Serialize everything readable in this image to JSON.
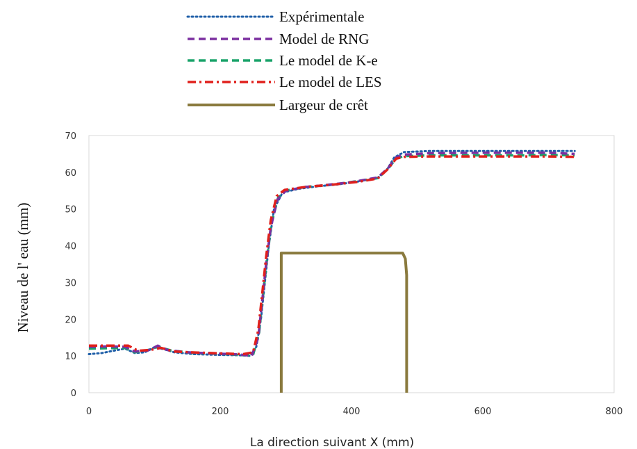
{
  "chart_data": {
    "type": "line",
    "title": "",
    "xlabel": "La direction suivant X (mm)",
    "ylabel": "Niveau de l' eau (mm)",
    "xlim": [
      0,
      800
    ],
    "ylim": [
      0,
      70
    ],
    "xticks": [
      0,
      200,
      400,
      600,
      800
    ],
    "yticks": [
      0,
      10,
      20,
      30,
      40,
      50,
      60,
      70
    ],
    "grid": false,
    "legend_position": "top",
    "series": [
      {
        "name": "Expérimentale",
        "color": "#1f5fa8",
        "style": "dotted",
        "points": [
          [
            0,
            10.5
          ],
          [
            20,
            10.8
          ],
          [
            40,
            11.5
          ],
          [
            55,
            12.0
          ],
          [
            70,
            10.8
          ],
          [
            85,
            11.0
          ],
          [
            100,
            12.4
          ],
          [
            115,
            11.8
          ],
          [
            130,
            11.0
          ],
          [
            160,
            10.5
          ],
          [
            200,
            10.3
          ],
          [
            230,
            10.2
          ],
          [
            245,
            10.0
          ],
          [
            255,
            12.5
          ],
          [
            262,
            20
          ],
          [
            268,
            30
          ],
          [
            274,
            40
          ],
          [
            282,
            50
          ],
          [
            295,
            54.5
          ],
          [
            320,
            55.5
          ],
          [
            350,
            56.2
          ],
          [
            380,
            56.7
          ],
          [
            410,
            57.5
          ],
          [
            440,
            58.5
          ],
          [
            455,
            61
          ],
          [
            465,
            64.0
          ],
          [
            480,
            65.5
          ],
          [
            520,
            65.8
          ],
          [
            560,
            65.8
          ],
          [
            600,
            65.8
          ],
          [
            650,
            65.8
          ],
          [
            700,
            65.8
          ],
          [
            740,
            65.8
          ]
        ]
      },
      {
        "name": "Model de RNG",
        "color": "#7b2fa0",
        "style": "dashed",
        "points": [
          [
            0,
            12.5
          ],
          [
            30,
            12.6
          ],
          [
            55,
            12.5
          ],
          [
            70,
            11.2
          ],
          [
            90,
            11.5
          ],
          [
            105,
            12.8
          ],
          [
            120,
            11.6
          ],
          [
            150,
            11.0
          ],
          [
            200,
            10.6
          ],
          [
            230,
            10.4
          ],
          [
            248,
            10.0
          ],
          [
            258,
            15
          ],
          [
            264,
            25
          ],
          [
            270,
            35
          ],
          [
            277,
            45
          ],
          [
            287,
            52.5
          ],
          [
            300,
            55
          ],
          [
            330,
            56
          ],
          [
            360,
            56.5
          ],
          [
            400,
            57.3
          ],
          [
            440,
            58.6
          ],
          [
            455,
            61
          ],
          [
            468,
            64
          ],
          [
            480,
            64.8
          ],
          [
            520,
            65.2
          ],
          [
            600,
            65.3
          ],
          [
            650,
            65.3
          ],
          [
            700,
            65.3
          ],
          [
            740,
            65.0
          ]
        ]
      },
      {
        "name": "Le model de K-e",
        "color": "#1aa36a",
        "style": "dashed",
        "points": [
          [
            0,
            12.0
          ],
          [
            30,
            12.1
          ],
          [
            55,
            12.2
          ],
          [
            70,
            11.0
          ],
          [
            90,
            11.6
          ],
          [
            105,
            12.5
          ],
          [
            125,
            11.5
          ],
          [
            160,
            10.8
          ],
          [
            200,
            10.6
          ],
          [
            235,
            10.2
          ],
          [
            250,
            10.3
          ],
          [
            259,
            16
          ],
          [
            265,
            26
          ],
          [
            271,
            36
          ],
          [
            278,
            46
          ],
          [
            288,
            53
          ],
          [
            300,
            55
          ],
          [
            330,
            56
          ],
          [
            370,
            56.6
          ],
          [
            410,
            57.6
          ],
          [
            440,
            58.4
          ],
          [
            455,
            60.8
          ],
          [
            468,
            63.8
          ],
          [
            480,
            64.4
          ],
          [
            520,
            64.6
          ],
          [
            600,
            64.6
          ],
          [
            660,
            64.6
          ],
          [
            700,
            64.7
          ],
          [
            740,
            64.6
          ]
        ]
      },
      {
        "name": "Le model de LES",
        "color": "#e0201c",
        "style": "dashdot",
        "points": [
          [
            0,
            12.8
          ],
          [
            30,
            12.8
          ],
          [
            60,
            12.8
          ],
          [
            75,
            11.4
          ],
          [
            95,
            11.7
          ],
          [
            110,
            12.2
          ],
          [
            130,
            11.2
          ],
          [
            170,
            10.9
          ],
          [
            200,
            10.7
          ],
          [
            235,
            10.5
          ],
          [
            250,
            11.0
          ],
          [
            258,
            17
          ],
          [
            264,
            27
          ],
          [
            270,
            37
          ],
          [
            277,
            47
          ],
          [
            286,
            53.5
          ],
          [
            298,
            55.2
          ],
          [
            330,
            56
          ],
          [
            370,
            56.6
          ],
          [
            410,
            57.4
          ],
          [
            440,
            58.3
          ],
          [
            455,
            60.8
          ],
          [
            468,
            63.7
          ],
          [
            480,
            64.2
          ],
          [
            520,
            64.3
          ],
          [
            600,
            64.3
          ],
          [
            660,
            64.3
          ],
          [
            700,
            64.3
          ],
          [
            740,
            64.2
          ]
        ]
      },
      {
        "name": "Largeur de crêt",
        "color": "#8a7a3e",
        "style": "solid",
        "points": [
          [
            293,
            0
          ],
          [
            293,
            38
          ],
          [
            478,
            38
          ],
          [
            482,
            36.5
          ],
          [
            484,
            32
          ],
          [
            484,
            0
          ]
        ]
      }
    ]
  }
}
